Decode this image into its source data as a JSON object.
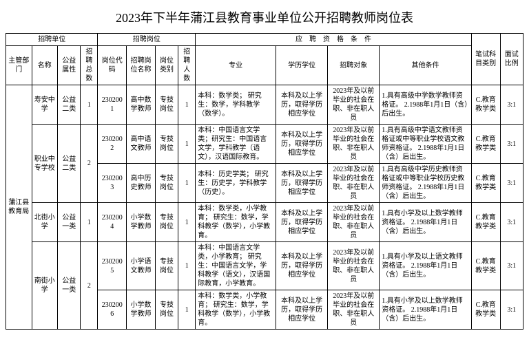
{
  "title": "2023年下半年蒲江县教育事业单位公开招聘教师岗位表",
  "header": {
    "unit": "招聘单位",
    "position": "招聘岗位",
    "qualification": "应　聘　资　格　条　件",
    "dept": "主管部门",
    "name": "名称",
    "welfare": "公益属性",
    "total": "招聘总数",
    "code": "岗位代码",
    "posname": "招聘岗位名称",
    "postype": "岗位类别",
    "count": "招聘人数",
    "major": "专业",
    "edu": "学历学位",
    "target": "招聘对象",
    "other": "其他条件",
    "subject": "笔试科目类别",
    "ratio": "面试比例"
  },
  "dept_all": "蒲江县教育局",
  "rows": [
    {
      "name": "寿安中学",
      "welfare": "公益二类",
      "total": "1",
      "code": "2302001",
      "posname": "高中数学教师",
      "postype": "专技岗位",
      "count": "1",
      "major": "本科：数学类；\n研究生：数学，学科教学（数学）。",
      "edu": "本科及以上学历，取得学历相应学位",
      "target": "2023年及以前毕业的社会在职、非在职人员",
      "other": "1.具有高级中学数学教师资格证。\n2.1988年1月1日（含）后出生。",
      "subject": "C.教育教学类",
      "ratio": "3:1"
    },
    {
      "name": "职业中专学校",
      "welfare": "公益二类",
      "total": "2",
      "code": "2302002",
      "posname": "高中语文教师",
      "postype": "专技岗位",
      "count": "1",
      "major": "本科：中国语言文学类；研究生：中国语言文学，学科教学（语文），汉语国际教育。",
      "edu": "本科及以上学历，取得学历相应学位",
      "target": "2023年及以前毕业的社会在职、非在职人员",
      "other": "1.具有高级中学语文教师资格证或中等职业学校语文教师资格证。\n2.1988年1月1日（含）后出生。",
      "subject": "C.教育教学类",
      "ratio": "3:1"
    },
    {
      "code": "2302003",
      "posname": "高中历史教师",
      "postype": "专技岗位",
      "count": "1",
      "major": "本科：历史学类；\n研究生：历史学，学科教学（历史）。",
      "edu": "本科及以上学历，取得学历相应学位",
      "target": "2023年及以前毕业的社会在职、非在职人员",
      "other": "1.具有高级中学历史教师资格证或中等职业学校历史教师资格证。\n2.1988年1月1日（含）后出生。",
      "subject": "C.教育教学类",
      "ratio": "3:1"
    },
    {
      "name": "北街小学",
      "welfare": "公益一类",
      "total": "1",
      "code": "2302004",
      "posname": "小学数学教师",
      "postype": "专技岗位",
      "count": "1",
      "major": "本科：数学类，小学教育；\n研究生：数学，学科教学（数学），小学教育。",
      "edu": "本科及以上学历，取得学历相应学位",
      "target": "2023年及以前毕业的社会在职、非在职人员",
      "other": "1.具有小学及以上数学教师资格证。\n2.1988年1月1日（含）后出生。",
      "subject": "C.教育教学类",
      "ratio": "3:1"
    },
    {
      "name": "南街小学",
      "welfare": "公益一类",
      "total": "2",
      "code": "2302005",
      "posname": "小学语文教师",
      "postype": "专技岗位",
      "count": "1",
      "major": "本科：中国语言文学类，小学教育；\n研究生：中国语言文学，学科教学（语文），汉语国际教育，小学教育。",
      "edu": "本科及以上学历，取得学历相应学位",
      "target": "2023年及以前毕业的社会在职、非在职人员",
      "other": "1.具有小学及以上语文教师资格证。\n2.1988年1月1日（含）后出生。",
      "subject": "C.教育教学类",
      "ratio": "3:1"
    },
    {
      "code": "2302006",
      "posname": "小学数学教师",
      "postype": "专技岗位",
      "count": "1",
      "major": "本科：数学类，小学教育；\n研究生：数学，学科教学（数学），小学教育。",
      "edu": "本科及以上学历，取得学历相应学位",
      "target": "2023年及以前毕业的社会在职、非在职人员",
      "other": "1.具有小学及以上数学教师资格证。\n2.1988年1月1日（含）后出生。",
      "subject": "C.教育教学类",
      "ratio": "3:1"
    }
  ]
}
